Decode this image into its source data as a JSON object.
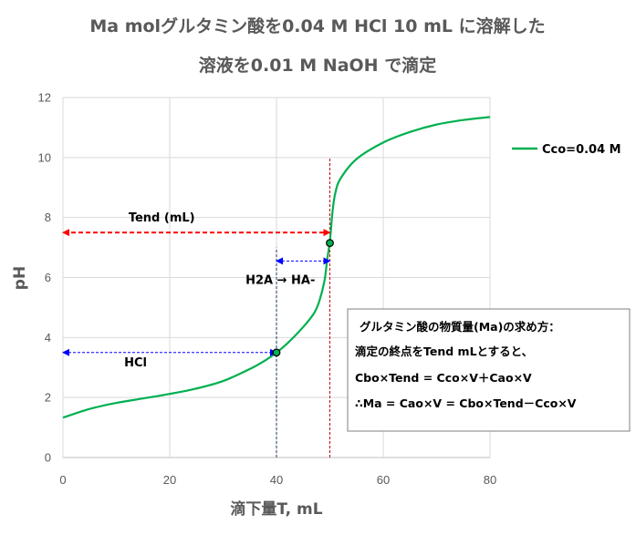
{
  "chart_data": {
    "type": "line",
    "title_line1": "Ma molグルタミン酸を0.04 M HCl 10 mL に溶解した",
    "title_line2": "溶液を0.01 M NaOH で滴定",
    "xlabel": "滴下量T, mL",
    "ylabel": "pH",
    "xlim": [
      0,
      80
    ],
    "ylim": [
      0,
      12
    ],
    "x_ticks": [
      "0",
      "20",
      "40",
      "60",
      "80"
    ],
    "y_ticks": [
      "0",
      "2",
      "4",
      "6",
      "8",
      "10",
      "12"
    ],
    "grid": true,
    "legend_position": "right",
    "series": [
      {
        "name": "Cco=0.04 M",
        "color": "#00B050",
        "x": [
          0,
          5,
          10,
          15,
          20,
          25,
          30,
          35,
          38,
          40,
          42,
          45,
          47,
          48,
          49,
          49.5,
          50,
          50.5,
          51,
          52,
          55,
          60,
          65,
          70,
          75,
          80
        ],
        "y": [
          1.33,
          1.62,
          1.82,
          1.97,
          2.12,
          2.3,
          2.55,
          2.95,
          3.25,
          3.5,
          3.8,
          4.35,
          4.8,
          5.2,
          5.9,
          6.6,
          7.2,
          8.2,
          8.8,
          9.3,
          9.95,
          10.5,
          10.85,
          11.1,
          11.25,
          11.35
        ]
      }
    ],
    "markers": [
      {
        "x": 40,
        "y": 3.5
      },
      {
        "x": 50,
        "y": 7.15
      }
    ],
    "reference_lines": [
      {
        "axis": "x",
        "value": 40,
        "color": "#1F3864"
      },
      {
        "axis": "x",
        "value": 50,
        "color": "#C00000"
      }
    ],
    "arrows": [
      {
        "label": "Tend (mL)",
        "x_from": 0,
        "x_to": 50,
        "y": 7.5,
        "color": "#FF0000"
      },
      {
        "label": "H2A → HA-",
        "x_from": 40,
        "x_to": 50,
        "y": 6.55,
        "color": "#0000FF"
      },
      {
        "label": "HCl",
        "x_from": 0,
        "x_to": 40,
        "y": 3.5,
        "color": "#0000FF"
      }
    ],
    "annotation_box": [
      "グルタミン酸の物質量(Ma)の求め方：",
      "滴定の終点をTend mLとすると、",
      "Cbo×Tend = Cco×V＋Cao×V",
      "∴Ma = Cao×V = Cbo×Tend－Cco×V"
    ]
  }
}
